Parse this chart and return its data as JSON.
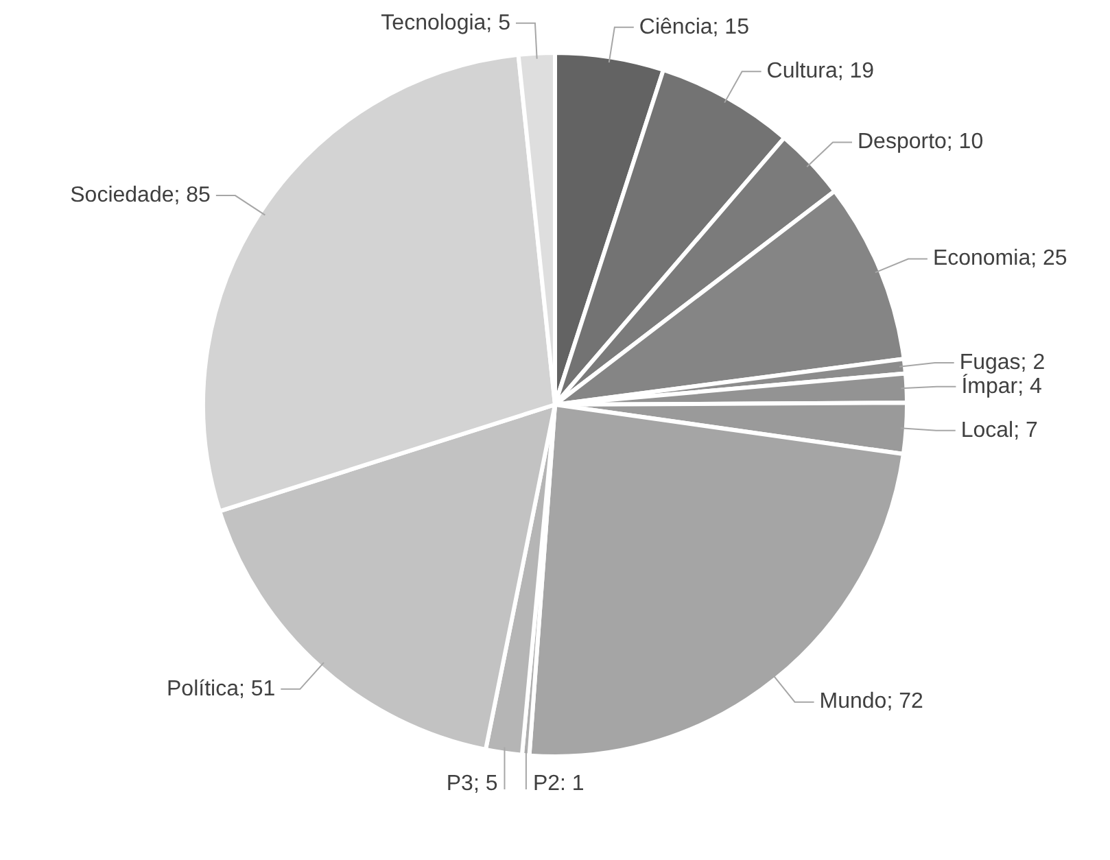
{
  "chart_data": {
    "type": "pie",
    "categories": [
      "Ciência",
      "Cultura",
      "Desporto",
      "Economia",
      "Fugas",
      "Ímpar",
      "Local",
      "Mundo",
      "P2",
      "P3",
      "Política",
      "Sociedade",
      "Tecnologia"
    ],
    "values": [
      15,
      19,
      10,
      25,
      2,
      4,
      7,
      72,
      1,
      5,
      51,
      85,
      5
    ],
    "colors": [
      "#636363",
      "#737373",
      "#7b7b7b",
      "#858585",
      "#8c8c8c",
      "#939393",
      "#9a9a9a",
      "#a5a5a5",
      "#afafaf",
      "#b5b5b5",
      "#c2c2c2",
      "#d3d3d3",
      "#dedede"
    ],
    "value_labels": [
      "; 15",
      "; 19",
      "; 10",
      "; 25",
      "; 2",
      "; 4",
      "; 7",
      "; 72",
      ": 1",
      "; 5",
      "; 51",
      "; 85",
      "; 5"
    ],
    "legend": false
  }
}
